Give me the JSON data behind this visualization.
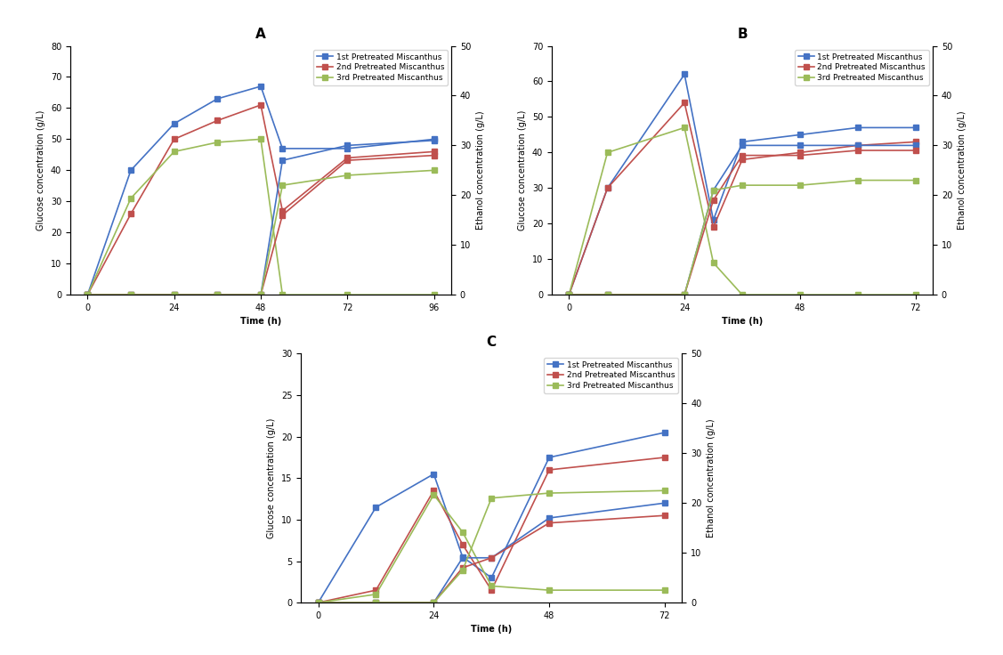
{
  "A": {
    "title": "A",
    "time": [
      0,
      12,
      24,
      36,
      48,
      54,
      72,
      96
    ],
    "gluc_1st": [
      0,
      40,
      55,
      63,
      67,
      47,
      47,
      50
    ],
    "gluc_2nd": [
      0,
      26,
      50,
      56,
      61,
      27,
      44,
      46
    ],
    "gluc_3rd": [
      0,
      31,
      46,
      49,
      50,
      0,
      0,
      0
    ],
    "eth_1st": [
      0,
      0,
      0,
      0,
      0,
      27,
      30,
      31
    ],
    "eth_2nd": [
      0,
      0,
      0,
      0,
      0,
      16,
      27,
      28
    ],
    "eth_3rd": [
      0,
      0,
      0,
      0,
      0,
      22,
      24,
      25
    ],
    "gluc_ylim": [
      0,
      80
    ],
    "gluc_yticks": [
      0,
      10,
      20,
      30,
      40,
      50,
      60,
      70,
      80
    ],
    "eth_ylim": [
      0,
      50
    ],
    "eth_yticks": [
      0,
      10,
      20,
      30,
      40,
      50
    ],
    "xticks": [
      0,
      24,
      48,
      72,
      96
    ]
  },
  "B": {
    "title": "B",
    "time": [
      0,
      8,
      24,
      30,
      36,
      48,
      60,
      72
    ],
    "gluc_1st": [
      0,
      30,
      62,
      21,
      43,
      45,
      47,
      47
    ],
    "gluc_2nd": [
      0,
      30,
      54,
      19,
      38,
      40,
      42,
      43
    ],
    "gluc_3rd": [
      0,
      40,
      47,
      9,
      0,
      0,
      0,
      0
    ],
    "eth_1st": [
      0,
      0,
      0,
      21,
      30,
      30,
      30,
      30
    ],
    "eth_2nd": [
      0,
      0,
      0,
      19,
      28,
      28,
      29,
      29
    ],
    "eth_3rd": [
      0,
      0,
      0,
      21,
      22,
      22,
      23,
      23
    ],
    "gluc_ylim": [
      0,
      70
    ],
    "gluc_yticks": [
      0,
      10,
      20,
      30,
      40,
      50,
      60,
      70
    ],
    "eth_ylim": [
      0,
      50
    ],
    "eth_yticks": [
      0,
      10,
      20,
      30,
      40,
      50
    ],
    "xticks": [
      0,
      24,
      48,
      72
    ]
  },
  "C": {
    "title": "C",
    "time": [
      0,
      12,
      24,
      30,
      36,
      48,
      72
    ],
    "gluc_1st": [
      0,
      11.5,
      15.5,
      5.5,
      3.0,
      17.5,
      20.5
    ],
    "gluc_2nd": [
      0,
      1.5,
      13.5,
      7.0,
      1.5,
      16.0,
      17.5
    ],
    "gluc_3rd": [
      0,
      1.0,
      13.0,
      8.5,
      2.0,
      1.5,
      1.5
    ],
    "eth_1st": [
      0,
      0,
      0,
      9.0,
      9.0,
      17.0,
      20.0
    ],
    "eth_2nd": [
      0,
      0,
      0,
      7.0,
      9.0,
      16.0,
      17.5
    ],
    "eth_3rd": [
      0,
      0,
      0,
      6.5,
      21.0,
      22.0,
      22.5
    ],
    "gluc_ylim": [
      0,
      30
    ],
    "gluc_yticks": [
      0,
      5,
      10,
      15,
      20,
      25,
      30
    ],
    "eth_ylim": [
      0,
      50
    ],
    "eth_yticks": [
      0,
      10,
      20,
      30,
      40,
      50
    ],
    "xticks": [
      0,
      24,
      48,
      72
    ]
  },
  "colors": {
    "1st": "#4472C4",
    "2nd": "#C0504D",
    "3rd": "#9BBB59"
  },
  "legend_labels": [
    "1st Pretreated Miscanthus",
    "2nd Pretreated Miscanthus",
    "3rd Pretreated Miscanthus"
  ],
  "linewidth": 1.2,
  "markersize": 4,
  "background_color": "#FFFFFF",
  "font_size_title": 11,
  "font_size_label": 7,
  "font_size_tick": 7,
  "font_size_legend": 6.5,
  "xlabel": "Time (h)",
  "ylabel_left": "Glucose concentration (g/L)",
  "ylabel_right": "Ethanol concentration (g/L)"
}
